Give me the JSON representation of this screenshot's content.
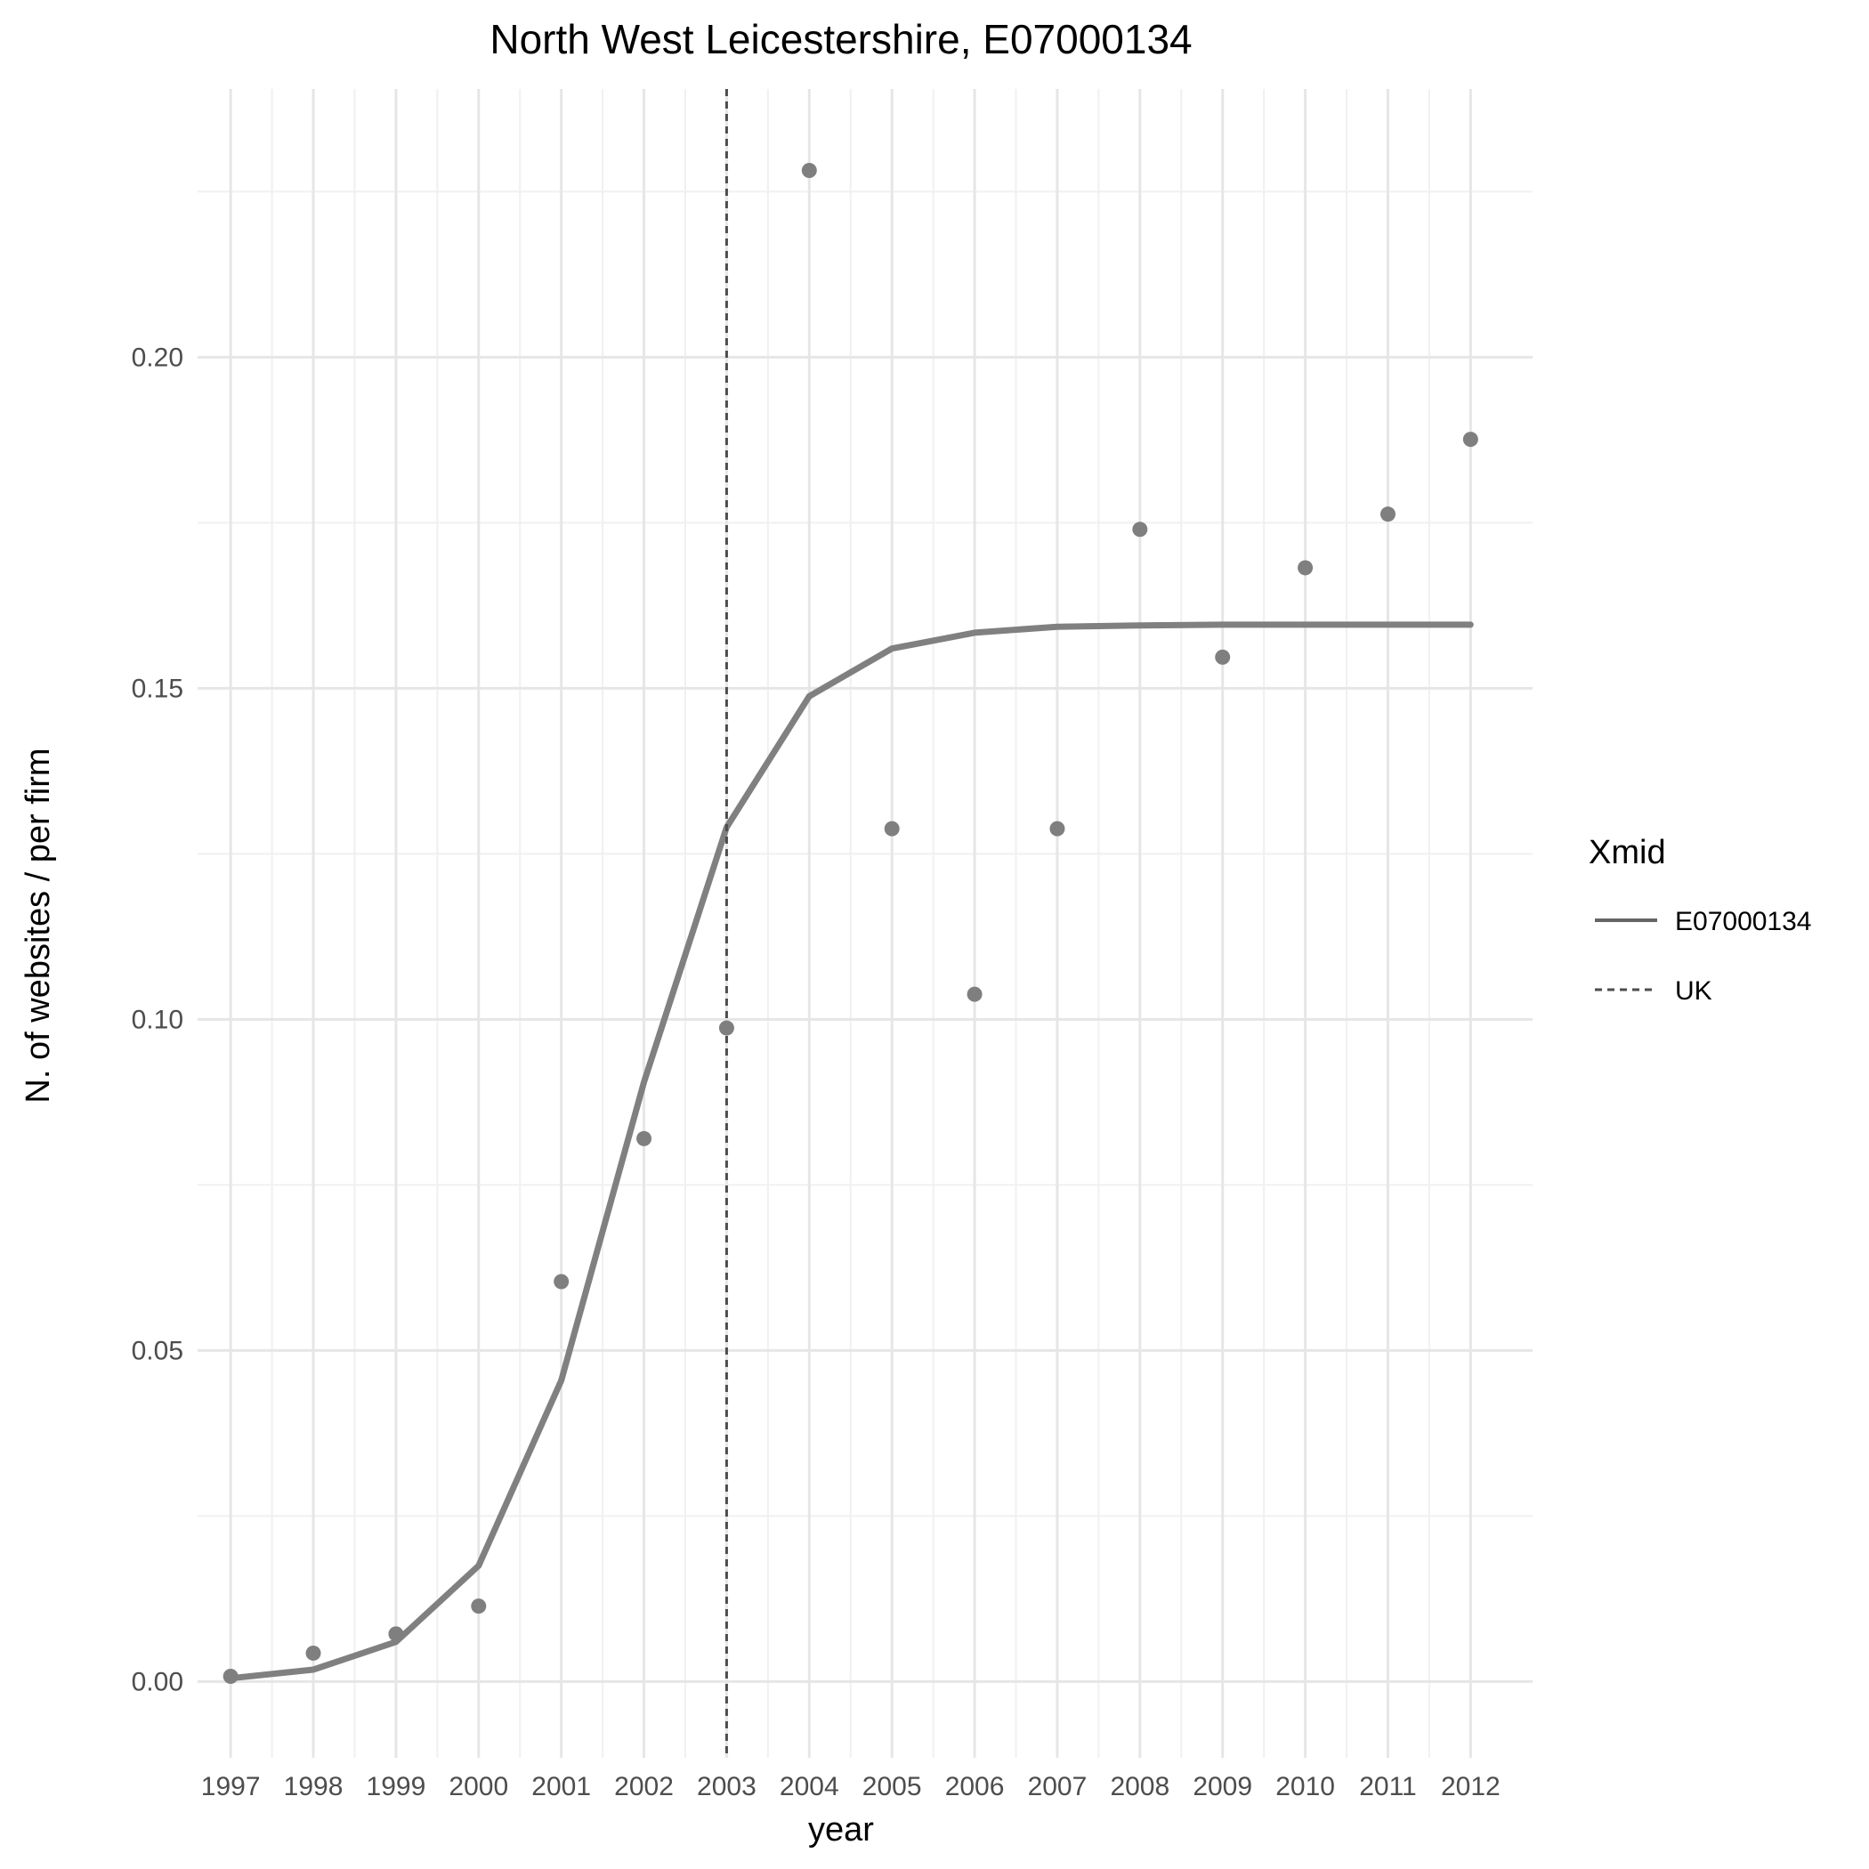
{
  "chart_data": {
    "type": "line",
    "title": "North West Leicestershire, E07000134",
    "xlabel": "year",
    "ylabel": "N. of websites / per firm",
    "x": [
      1997,
      1998,
      1999,
      2000,
      2001,
      2002,
      2003,
      2004,
      2005,
      2006,
      2007,
      2008,
      2009,
      2010,
      2011,
      2012
    ],
    "xticks": [
      "1997",
      "1998",
      "1999",
      "2000",
      "2001",
      "2002",
      "2003",
      "2004",
      "2005",
      "2006",
      "2007",
      "2008",
      "2009",
      "2010",
      "2011",
      "2012"
    ],
    "yticks": [
      "0.00",
      "0.05",
      "0.10",
      "0.15",
      "0.20"
    ],
    "ylim": [
      -0.0115,
      0.2405
    ],
    "xlim": [
      1996.6,
      2012.75
    ],
    "grid": true,
    "points": [
      0.0008,
      0.0043,
      0.0072,
      0.0114,
      0.0604,
      0.082,
      0.0987,
      0.2282,
      0.1288,
      0.1038,
      0.1288,
      0.174,
      0.1547,
      0.1682,
      0.1763,
      0.1876
    ],
    "series": [
      {
        "name": "E07000134",
        "style": "solid",
        "values": [
          0.0005,
          0.0018,
          0.006,
          0.0175,
          0.0455,
          0.0905,
          0.129,
          0.1488,
          0.156,
          0.1584,
          0.1593,
          0.1595,
          0.1596,
          0.1596,
          0.1596,
          0.1596
        ]
      }
    ],
    "vline": {
      "name": "UK",
      "x": 2003,
      "style": "dashed"
    },
    "legend": {
      "title": "Xmid",
      "placement": "right",
      "entries": [
        "E07000134",
        "UK"
      ]
    },
    "colors": {
      "line": "#808080",
      "points": "#7f7f7f",
      "vline": "#4d4d4d",
      "grid_major": "#e6e6e6",
      "grid_minor": "#f0f0f0",
      "legend_line": "#666666"
    }
  }
}
